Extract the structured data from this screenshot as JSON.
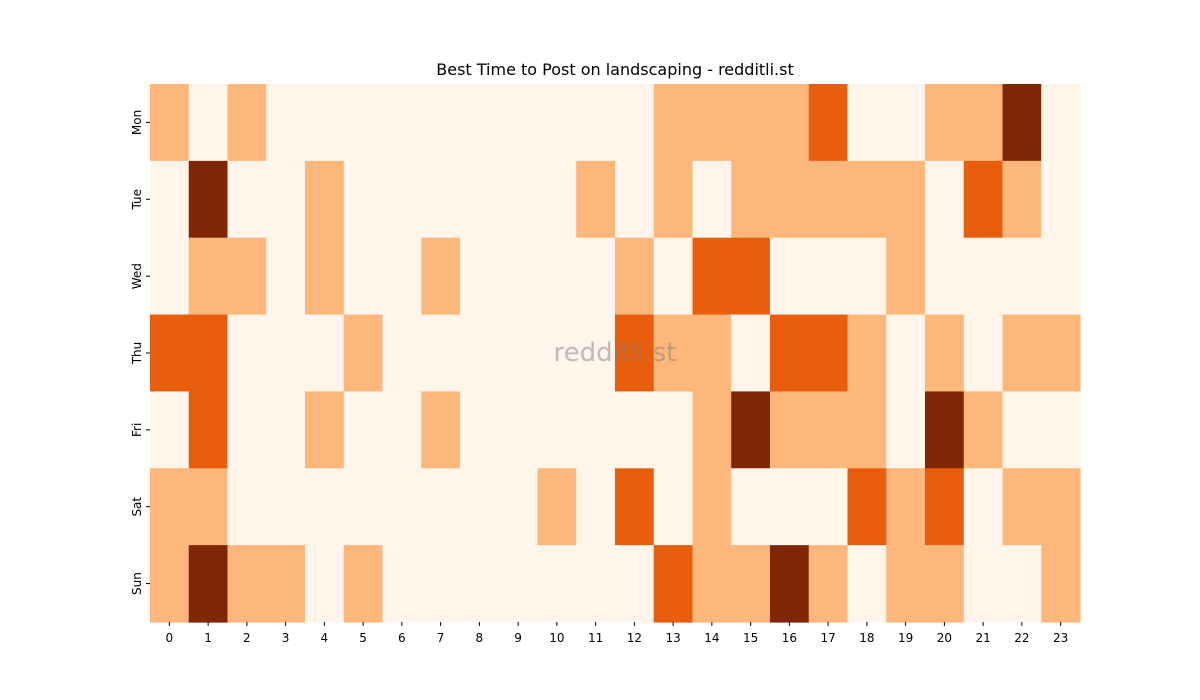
{
  "chart_data": {
    "type": "heatmap",
    "title": "Best Time to Post on landscaping - redditli.st",
    "watermark": "redditli.st",
    "xlabel": "",
    "ylabel": "",
    "x": [
      "0",
      "1",
      "2",
      "3",
      "4",
      "5",
      "6",
      "7",
      "8",
      "9",
      "10",
      "11",
      "12",
      "13",
      "14",
      "15",
      "16",
      "17",
      "18",
      "19",
      "20",
      "21",
      "22",
      "23"
    ],
    "y": [
      "Mon",
      "Tue",
      "Wed",
      "Thu",
      "Fri",
      "Sat",
      "Sun"
    ],
    "levels": [
      0,
      1,
      2,
      3
    ],
    "colormap": [
      "#fff5eb",
      "#fdb77a",
      "#e95e0d",
      "#7f2704"
    ],
    "values": [
      [
        1,
        0,
        1,
        0,
        0,
        0,
        0,
        0,
        0,
        0,
        0,
        0,
        0,
        1,
        1,
        1,
        1,
        2,
        0,
        0,
        1,
        1,
        3,
        0
      ],
      [
        0,
        3,
        0,
        0,
        1,
        0,
        0,
        0,
        0,
        0,
        0,
        1,
        0,
        1,
        0,
        1,
        1,
        1,
        1,
        1,
        0,
        2,
        1,
        0
      ],
      [
        0,
        1,
        1,
        0,
        1,
        0,
        0,
        1,
        0,
        0,
        0,
        0,
        1,
        0,
        2,
        2,
        0,
        0,
        0,
        1,
        0,
        0,
        0,
        0
      ],
      [
        2,
        2,
        0,
        0,
        0,
        1,
        0,
        0,
        0,
        0,
        0,
        0,
        2,
        1,
        1,
        0,
        2,
        2,
        1,
        0,
        1,
        0,
        1,
        1
      ],
      [
        0,
        2,
        0,
        0,
        1,
        0,
        0,
        1,
        0,
        0,
        0,
        0,
        0,
        0,
        1,
        3,
        1,
        1,
        1,
        0,
        3,
        1,
        0,
        0
      ],
      [
        1,
        1,
        0,
        0,
        0,
        0,
        0,
        0,
        0,
        0,
        1,
        0,
        2,
        0,
        1,
        0,
        0,
        0,
        2,
        1,
        2,
        0,
        1,
        1
      ],
      [
        1,
        3,
        1,
        1,
        0,
        1,
        0,
        0,
        0,
        0,
        0,
        0,
        0,
        2,
        1,
        1,
        3,
        1,
        0,
        1,
        1,
        0,
        0,
        1
      ]
    ]
  }
}
